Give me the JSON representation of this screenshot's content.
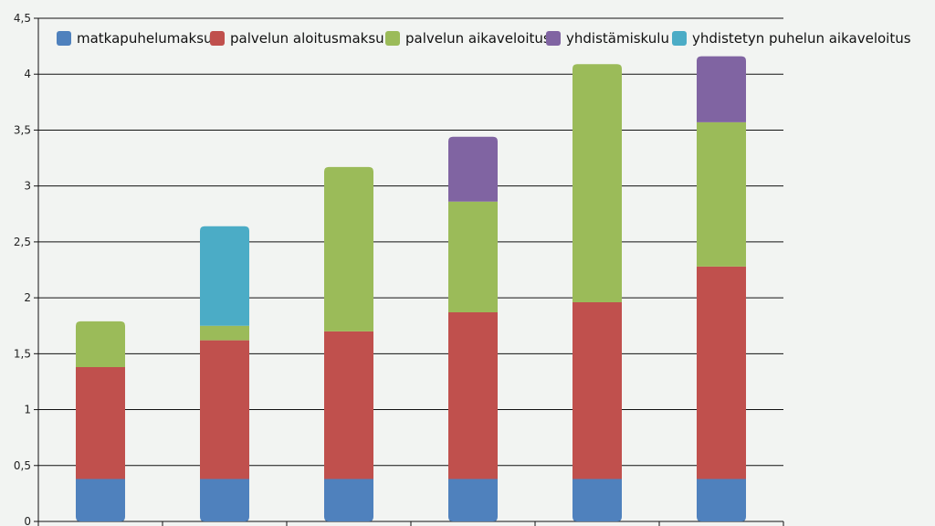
{
  "chart_data": {
    "type": "bar",
    "stacked": true,
    "categories": [
      "",
      "",
      "",
      "",
      "",
      ""
    ],
    "ylim": [
      0,
      4.5
    ],
    "yticks": [
      "0",
      "0,5",
      "1",
      "1,5",
      "2",
      "2,5",
      "3",
      "3,5",
      "4",
      "4,5"
    ],
    "grid": true,
    "legend_position": "top",
    "series": [
      {
        "name": "matkapuhelumaksu",
        "color": "#4f81bd",
        "values": [
          0.38,
          0.38,
          0.38,
          0.38,
          0.38,
          0.38
        ]
      },
      {
        "name": "palvelun aloitusmaksu",
        "color": "#c0504d",
        "values": [
          1.0,
          1.24,
          1.32,
          1.49,
          1.58,
          1.9
        ]
      },
      {
        "name": "palvelun aikaveloitus",
        "color": "#9bbb59",
        "values": [
          0.41,
          0.13,
          1.47,
          0.99,
          2.13,
          1.29
        ]
      },
      {
        "name": "yhdistämiskulu",
        "color": "#8064a2",
        "values": [
          0,
          0,
          0,
          0.58,
          0,
          0.59
        ]
      },
      {
        "name": "yhdistetyn puhelun aikaveloitus",
        "color": "#4bacc6",
        "values": [
          0,
          0.89,
          0,
          0,
          0,
          0
        ]
      }
    ]
  }
}
